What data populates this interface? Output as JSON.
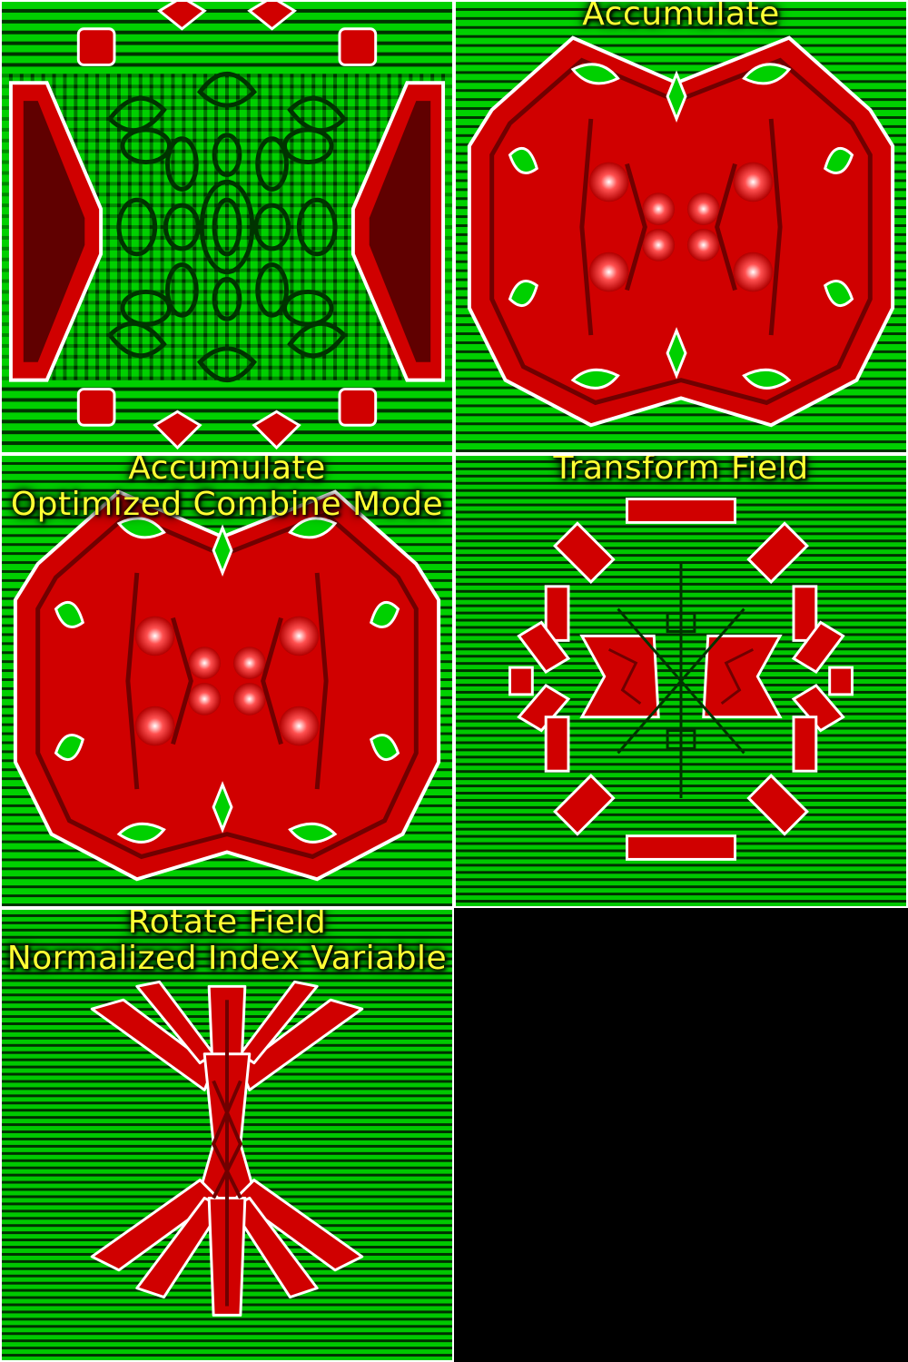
{
  "colors": {
    "green": "#00dd00",
    "dark_green": "#003300",
    "red": "#e00000",
    "dark_red": "#550000",
    "white": "#ffffff",
    "caption": "#ffff33",
    "empty_cell": "#000000"
  },
  "panels": [
    {
      "caption": []
    },
    {
      "caption": [
        "Accumulate"
      ]
    },
    {
      "caption": [
        "Accumulate",
        "Optimized Combine Mode"
      ]
    },
    {
      "caption": [
        "Transform Field"
      ]
    },
    {
      "caption": [
        "Rotate Field",
        "Normalized Index Variable"
      ]
    }
  ]
}
